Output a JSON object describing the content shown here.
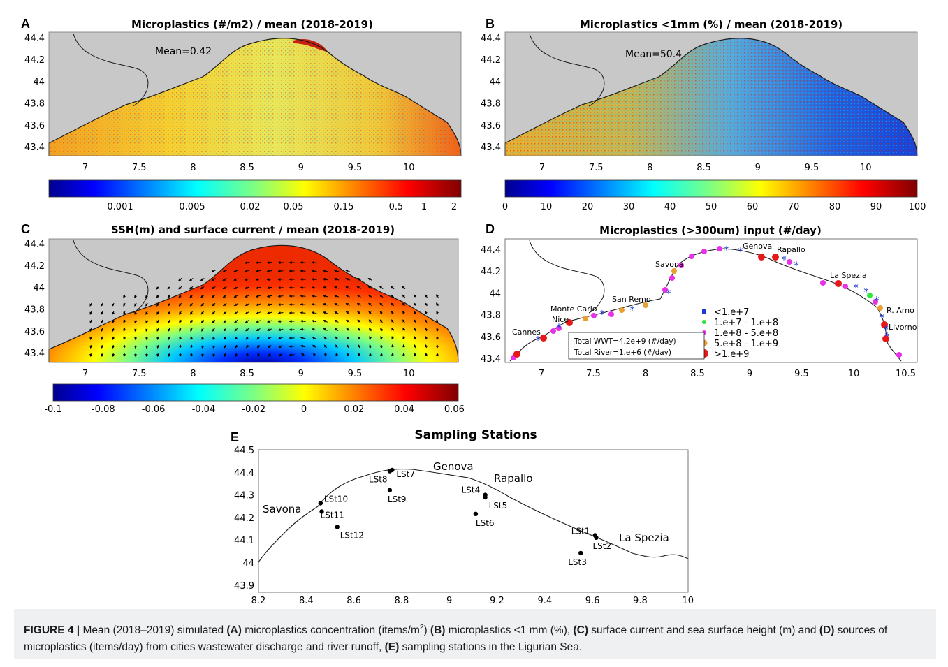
{
  "panels": {
    "A": {
      "letter": "A",
      "title": "Microplastics (#/m2) / mean (2018-2019)",
      "mean_text": "Mean=0.42",
      "yticks": [
        "44.4",
        "44.2",
        "44",
        "43.8",
        "43.6",
        "43.4"
      ],
      "xticks": [
        "7",
        "7.5",
        "8",
        "8.5",
        "9",
        "9.5",
        "10"
      ],
      "colorbar_ticks": [
        "0.001",
        "0.005",
        "0.02",
        "0.05",
        "0.15",
        "0.5",
        "1",
        "2"
      ]
    },
    "B": {
      "letter": "B",
      "title": "Microplastics <1mm (%) / mean (2018-2019)",
      "mean_text": "Mean=50.4",
      "yticks": [
        "44.4",
        "44.2",
        "44",
        "43.8",
        "43.6",
        "43.4"
      ],
      "xticks": [
        "7",
        "7.5",
        "8",
        "8.5",
        "9",
        "9.5",
        "10"
      ],
      "colorbar_ticks": [
        "0",
        "10",
        "20",
        "30",
        "40",
        "50",
        "60",
        "70",
        "80",
        "90",
        "100"
      ]
    },
    "C": {
      "letter": "C",
      "title": "SSH(m) and surface current / mean (2018-2019)",
      "yticks": [
        "44.4",
        "44.2",
        "44",
        "43.8",
        "43.6",
        "43.4"
      ],
      "xticks": [
        "7",
        "7.5",
        "8",
        "8.5",
        "9",
        "9.5",
        "10"
      ],
      "colorbar_ticks": [
        "-0.1",
        "-0.08",
        "-0.06",
        "-0.04",
        "-0.02",
        "0",
        "0.02",
        "0.04",
        "0.06"
      ]
    },
    "D": {
      "letter": "D",
      "title": "Microplastics (>300um) input (#/day)",
      "yticks": [
        "44.4",
        "44.2",
        "44",
        "43.8",
        "43.6",
        "43.4"
      ],
      "xticks": [
        "7",
        "7.5",
        "8",
        "8.5",
        "9",
        "9.5",
        "10",
        "10.5"
      ],
      "places": [
        "Genova",
        "Rapallo",
        "Savona",
        "La Spezia",
        "San Remo",
        "Monte Carlo",
        "Nice",
        "R. Arno",
        "Cannes",
        "Livorno"
      ],
      "legend": [
        {
          "label": "<1.e+7",
          "color": "#1a3ad6",
          "shape": "square"
        },
        {
          "label": "1.e+7 - 1.e+8",
          "color": "#2ee83a",
          "shape": "dot"
        },
        {
          "label": "1.e+8 - 5.e+8",
          "color": "#e830e8",
          "shape": "dot"
        },
        {
          "label": "5.e+8 - 1.e+9",
          "color": "#e8a030",
          "shape": "dot"
        },
        {
          "label": ">1.e+9",
          "color": "#e81818",
          "shape": "dot"
        }
      ],
      "totals": [
        "Total WWT=4.2e+9 (#/day)",
        "Total River=1.e+6 (#/day)"
      ]
    },
    "E": {
      "letter": "E",
      "title": "Sampling Stations",
      "yticks": [
        "44.5",
        "44.4",
        "44.3",
        "44.2",
        "44.1",
        "44",
        "43.9"
      ],
      "xticks": [
        "8.2",
        "8.4",
        "8.6",
        "8.8",
        "9",
        "9.2",
        "9.4",
        "9.6",
        "9.8",
        "10"
      ],
      "places": [
        "Genova",
        "Rapallo",
        "Savona",
        "La Spezia"
      ],
      "stations": [
        {
          "name": "LSt1",
          "lon": 9.61,
          "lat": 44.14
        },
        {
          "name": "LSt2",
          "lon": 9.615,
          "lat": 44.13
        },
        {
          "name": "LSt3",
          "lon": 9.55,
          "lat": 44.065
        },
        {
          "name": "LSt4",
          "lon": 9.15,
          "lat": 44.31
        },
        {
          "name": "LSt5",
          "lon": 9.15,
          "lat": 44.3
        },
        {
          "name": "LSt6",
          "lon": 9.11,
          "lat": 44.23
        },
        {
          "name": "LSt7",
          "lon": 8.76,
          "lat": 44.415
        },
        {
          "name": "LSt8",
          "lon": 8.75,
          "lat": 44.41
        },
        {
          "name": "LSt9",
          "lon": 8.75,
          "lat": 44.33
        },
        {
          "name": "LSt10",
          "lon": 8.46,
          "lat": 44.275
        },
        {
          "name": "LSt11",
          "lon": 8.465,
          "lat": 44.24
        },
        {
          "name": "LSt12",
          "lon": 8.53,
          "lat": 44.175
        }
      ]
    }
  },
  "caption": {
    "figure_label": "FIGURE 4 |",
    "parts": [
      {
        "t": " Mean (2018–2019) simulated ",
        "b": false
      },
      {
        "t": "(A)",
        "b": true
      },
      {
        "t": " microplastics concentration (items/m",
        "b": false
      },
      {
        "t": "2",
        "b": false,
        "sup": true
      },
      {
        "t": ") ",
        "b": false
      },
      {
        "t": "(B)",
        "b": true
      },
      {
        "t": " microplastics <1 mm (%), ",
        "b": false
      },
      {
        "t": "(C)",
        "b": true
      },
      {
        "t": " surface current and sea surface height (m) and ",
        "b": false
      },
      {
        "t": "(D)",
        "b": true
      },
      {
        "t": " sources of microplastics (items/day) from cities wastewater discharge and river runoff, ",
        "b": false
      },
      {
        "t": "(E)",
        "b": true
      },
      {
        "t": " sampling stations in the Ligurian Sea.",
        "b": false
      }
    ]
  }
}
